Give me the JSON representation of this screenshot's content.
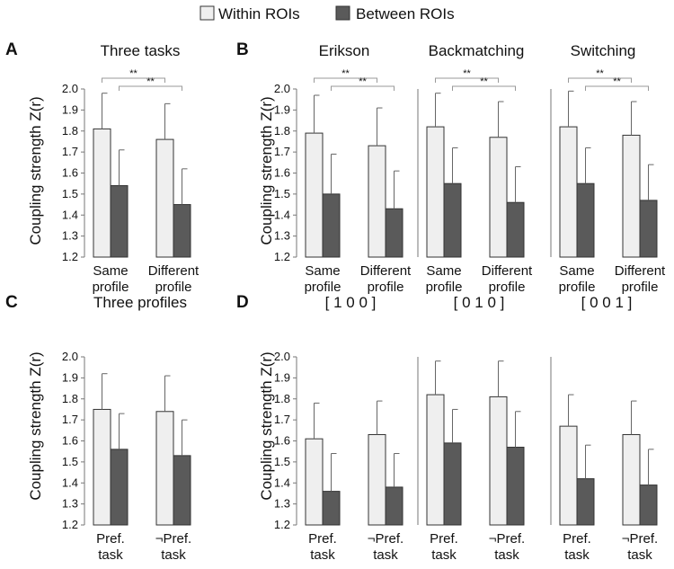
{
  "legend": {
    "within": "Within ROIs",
    "between": "Between ROIs"
  },
  "colors": {
    "within_fill": "#efefef",
    "between_fill": "#5a5a5a",
    "edge": "#333333",
    "bracket": "#999999"
  },
  "chart_data": [
    {
      "id": "A-three-tasks",
      "type": "bar",
      "panel_label": "A",
      "title": "Three tasks",
      "ylabel": "Coupling strength Z(r)",
      "ylim": [
        1.2,
        2.0
      ],
      "yticks": [
        "1.2",
        "1.3",
        "1.4",
        "1.5",
        "1.6",
        "1.7",
        "1.8",
        "1.9",
        "2.0"
      ],
      "categories": [
        [
          "Same",
          "profile"
        ],
        [
          "Different",
          "profile"
        ]
      ],
      "series": [
        {
          "name": "Within ROIs",
          "values": [
            1.81,
            1.76
          ],
          "err_upper": [
            1.98,
            1.93
          ]
        },
        {
          "name": "Between ROIs",
          "values": [
            1.54,
            1.45
          ],
          "err_upper": [
            1.71,
            1.62
          ]
        }
      ],
      "significance": [
        "**",
        "**"
      ]
    },
    {
      "id": "B-erikson",
      "type": "bar",
      "panel_label": "B",
      "title": "Erikson",
      "ylabel": "Coupling strength Z(r)",
      "ylim": [
        1.2,
        2.0
      ],
      "yticks": [
        "1.2",
        "1.3",
        "1.4",
        "1.5",
        "1.6",
        "1.7",
        "1.8",
        "1.9",
        "2.0"
      ],
      "categories": [
        [
          "Same",
          "profile"
        ],
        [
          "Different",
          "profile"
        ]
      ],
      "series": [
        {
          "name": "Within ROIs",
          "values": [
            1.79,
            1.73
          ],
          "err_upper": [
            1.97,
            1.91
          ]
        },
        {
          "name": "Between ROIs",
          "values": [
            1.5,
            1.43
          ],
          "err_upper": [
            1.69,
            1.61
          ]
        }
      ],
      "significance": [
        "**",
        "**"
      ]
    },
    {
      "id": "B-backmatching",
      "type": "bar",
      "title": "Backmatching",
      "ylim": [
        1.2,
        2.0
      ],
      "categories": [
        [
          "Same",
          "profile"
        ],
        [
          "Different",
          "profile"
        ]
      ],
      "series": [
        {
          "name": "Within ROIs",
          "values": [
            1.82,
            1.77
          ],
          "err_upper": [
            1.98,
            1.94
          ]
        },
        {
          "name": "Between ROIs",
          "values": [
            1.55,
            1.46
          ],
          "err_upper": [
            1.72,
            1.63
          ]
        }
      ],
      "significance": [
        "**",
        "**"
      ]
    },
    {
      "id": "B-switching",
      "type": "bar",
      "title": "Switching",
      "ylim": [
        1.2,
        2.0
      ],
      "categories": [
        [
          "Same",
          "profile"
        ],
        [
          "Different",
          "profile"
        ]
      ],
      "series": [
        {
          "name": "Within ROIs",
          "values": [
            1.82,
            1.78
          ],
          "err_upper": [
            1.99,
            1.94
          ]
        },
        {
          "name": "Between ROIs",
          "values": [
            1.55,
            1.47
          ],
          "err_upper": [
            1.72,
            1.64
          ]
        }
      ],
      "significance": [
        "**",
        "**"
      ]
    },
    {
      "id": "C-three-profiles",
      "type": "bar",
      "panel_label": "C",
      "title": "Three profiles",
      "ylabel": "Coupling strength Z(r)",
      "ylim": [
        1.2,
        2.0
      ],
      "yticks": [
        "1.2",
        "1.3",
        "1.4",
        "1.5",
        "1.6",
        "1.7",
        "1.8",
        "1.9",
        "2.0"
      ],
      "categories": [
        [
          "Pref.",
          "task"
        ],
        [
          "¬Pref.",
          "task"
        ]
      ],
      "series": [
        {
          "name": "Within ROIs",
          "values": [
            1.75,
            1.74
          ],
          "err_upper": [
            1.92,
            1.91
          ]
        },
        {
          "name": "Between ROIs",
          "values": [
            1.56,
            1.53
          ],
          "err_upper": [
            1.73,
            1.7
          ]
        }
      ],
      "significance": []
    },
    {
      "id": "D-100",
      "type": "bar",
      "panel_label": "D",
      "title": "[ 1 0 0 ]",
      "ylabel": "Coupling strength Z(r)",
      "ylim": [
        1.2,
        2.0
      ],
      "yticks": [
        "1.2",
        "1.3",
        "1.4",
        "1.5",
        "1.6",
        "1.7",
        "1.8",
        "1.9",
        "2.0"
      ],
      "categories": [
        [
          "Pref.",
          "task"
        ],
        [
          "¬Pref.",
          "task"
        ]
      ],
      "series": [
        {
          "name": "Within ROIs",
          "values": [
            1.61,
            1.63
          ],
          "err_upper": [
            1.78,
            1.79
          ]
        },
        {
          "name": "Between ROIs",
          "values": [
            1.36,
            1.38
          ],
          "err_upper": [
            1.54,
            1.54
          ]
        }
      ],
      "significance": []
    },
    {
      "id": "D-010",
      "type": "bar",
      "title": "[ 0 1 0 ]",
      "ylim": [
        1.2,
        2.0
      ],
      "categories": [
        [
          "Pref.",
          "task"
        ],
        [
          "¬Pref.",
          "task"
        ]
      ],
      "series": [
        {
          "name": "Within ROIs",
          "values": [
            1.82,
            1.81
          ],
          "err_upper": [
            1.98,
            1.98
          ]
        },
        {
          "name": "Between ROIs",
          "values": [
            1.59,
            1.57
          ],
          "err_upper": [
            1.75,
            1.74
          ]
        }
      ],
      "significance": []
    },
    {
      "id": "D-001",
      "type": "bar",
      "title": "[ 0 0 1 ]",
      "ylim": [
        1.2,
        2.0
      ],
      "categories": [
        [
          "Pref.",
          "task"
        ],
        [
          "¬Pref.",
          "task"
        ]
      ],
      "series": [
        {
          "name": "Within ROIs",
          "values": [
            1.67,
            1.63
          ],
          "err_upper": [
            1.82,
            1.79
          ]
        },
        {
          "name": "Between ROIs",
          "values": [
            1.42,
            1.39
          ],
          "err_upper": [
            1.58,
            1.56
          ]
        }
      ],
      "significance": []
    }
  ]
}
